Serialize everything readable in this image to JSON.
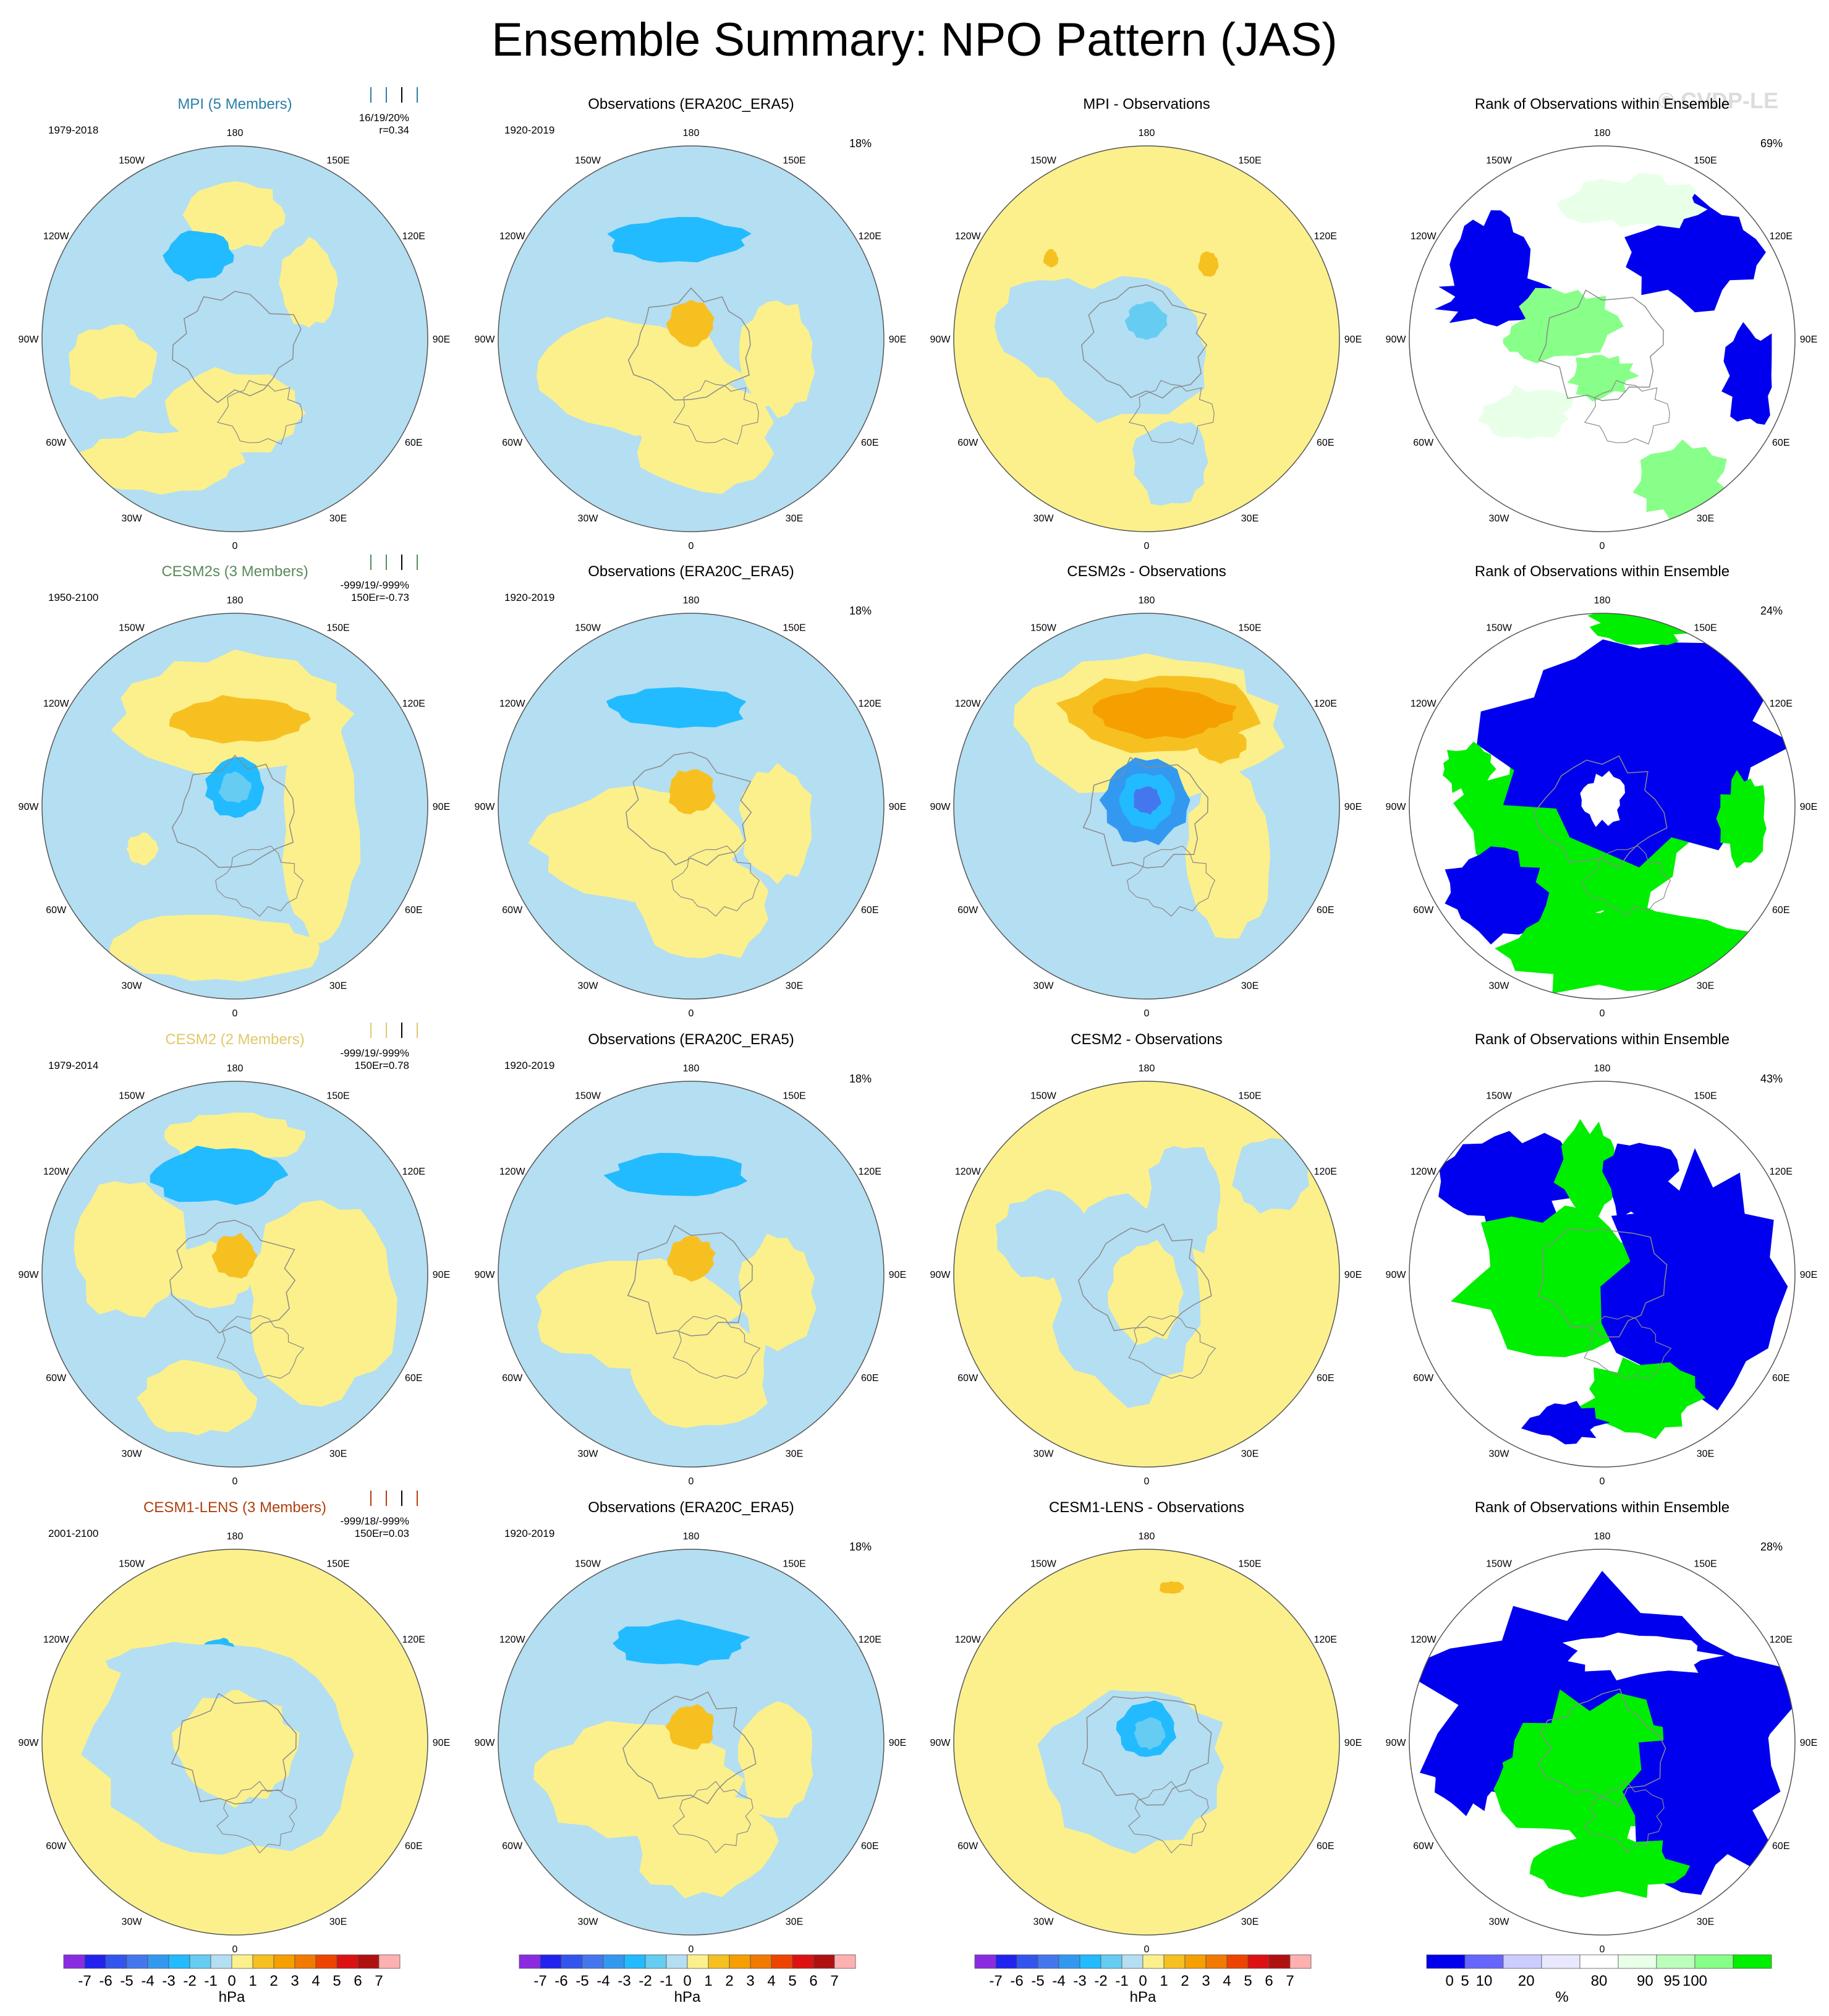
{
  "title": "Ensemble Summary: NPO Pattern (JAS)",
  "watermark": "© CVDP-LE",
  "colors": {
    "neg": [
      "#8a2be2",
      "#2222ee",
      "#3355ee",
      "#4477ee",
      "#3399f0",
      "#22bbff",
      "#66ccf2",
      "#b4def2"
    ],
    "pos": [
      "#fbf08c",
      "#f7c021",
      "#f5a000",
      "#f37a00",
      "#ee4400",
      "#dd1111",
      "#b01010",
      "#ffb0b0"
    ],
    "land": "#b4def2",
    "ocean_light": "#b4def2",
    "yellow": "#fbf08c",
    "rank": [
      "#0000ee",
      "#6666ff",
      "#ccccff",
      "#e8e8ff",
      "#ffffff",
      "#e8ffe8",
      "#bbffbb",
      "#88ff88",
      "#00ee00"
    ],
    "mpi": "#2a7fa8",
    "cesm2s": "#5a8a5a",
    "cesm2": "#e8cf6a",
    "cesm1lens": "#b04010"
  },
  "longitude_labels": [
    "180",
    "150E",
    "120E",
    "90E",
    "60E",
    "30E",
    "0",
    "30W",
    "60W",
    "90W",
    "120W",
    "150W"
  ],
  "rows": [
    {
      "model": "MPI (5 Members)",
      "model_color": "#2a7fa8",
      "period": "1979-2018",
      "stats_line1": "16/19/20%",
      "stats_line2": "r=0.34",
      "obs_title": "Observations (ERA20C_ERA5)",
      "obs_period": "1920-2019",
      "obs_pct": "18%",
      "diff_title": "MPI - Observations",
      "rank_title": "Rank of Observations within Ensemble",
      "rank_pct": "69%"
    },
    {
      "model": "CESM2s (3 Members)",
      "model_color": "#5a8a5a",
      "period": "1950-2100",
      "stats_line1": "-999/19/-999%",
      "stats_line2": "150Er=-0.73",
      "obs_title": "Observations (ERA20C_ERA5)",
      "obs_period": "1920-2019",
      "obs_pct": "18%",
      "diff_title": "CESM2s - Observations",
      "rank_title": "Rank of Observations within Ensemble",
      "rank_pct": "24%"
    },
    {
      "model": "CESM2 (2 Members)",
      "model_color": "#e0c96a",
      "period": "1979-2014",
      "stats_line1": "-999/19/-999%",
      "stats_line2": "150Er=0.78",
      "obs_title": "Observations (ERA20C_ERA5)",
      "obs_period": "1920-2019",
      "obs_pct": "18%",
      "diff_title": "CESM2 - Observations",
      "rank_title": "Rank of Observations within Ensemble",
      "rank_pct": "43%"
    },
    {
      "model": "CESM1-LENS (3 Members)",
      "model_color": "#b04010",
      "period": "2001-2100",
      "stats_line1": "-999/18/-999%",
      "stats_line2": "150Er=0.03",
      "obs_title": "Observations (ERA20C_ERA5)",
      "obs_period": "1920-2019",
      "obs_pct": "18%",
      "diff_title": "CESM1-LENS - Observations",
      "rank_title": "Rank of Observations within Ensemble",
      "rank_pct": "28%"
    }
  ],
  "colorbar_hpa": {
    "labels": [
      "-7",
      "-6",
      "-5",
      "-4",
      "-3",
      "-2",
      "-1",
      "0",
      "1",
      "2",
      "3",
      "4",
      "5",
      "6",
      "7"
    ],
    "unit": "hPa"
  },
  "colorbar_rank": {
    "labels": [
      "0",
      "5",
      "10",
      "20",
      "80",
      "90",
      "95",
      "100"
    ],
    "unit": "%"
  },
  "chart_data": {
    "type": "heatmap",
    "title": "Ensemble Summary: NPO Pattern (JAS)",
    "projection": "north polar stereographic",
    "panels_per_row": [
      "ensemble mean pattern",
      "observations",
      "ensemble mean minus observations",
      "rank of observations within ensemble"
    ],
    "contour_levels_hPa": [
      -7,
      -6,
      -5,
      -4,
      -3,
      -2,
      -1,
      0,
      1,
      2,
      3,
      4,
      5,
      6,
      7
    ],
    "rank_levels_percent": [
      0,
      5,
      10,
      20,
      80,
      90,
      95,
      100
    ]
  }
}
